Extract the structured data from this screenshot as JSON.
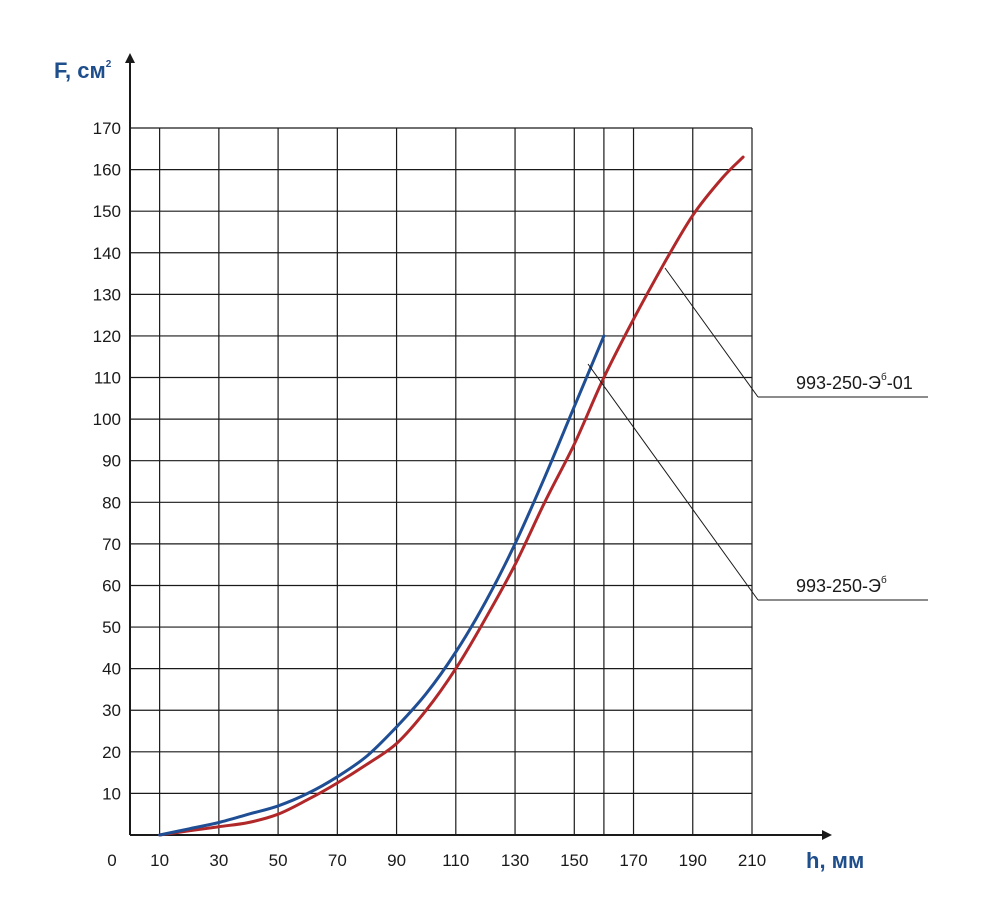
{
  "colors": {
    "blue": "#1f4e94",
    "red": "#b0282a",
    "grid": "#1a1a1a",
    "axis_title": "#1f4e8c"
  },
  "chart_data": {
    "type": "line",
    "xlabel": "h, мм",
    "ylabel_main": "F, см",
    "ylabel_sup": "2",
    "xlim": [
      0,
      210
    ],
    "ylim": [
      0,
      170
    ],
    "grid": true,
    "x_ticks": [
      {
        "label": "0",
        "value": 0
      },
      {
        "label": "10",
        "value": 10
      },
      {
        "label": "30",
        "value": 30
      },
      {
        "label": "50",
        "value": 50
      },
      {
        "label": "70",
        "value": 70
      },
      {
        "label": "90",
        "value": 90
      },
      {
        "label": "110",
        "value": 110
      },
      {
        "label": "130",
        "value": 130
      },
      {
        "label": "150",
        "value": 150
      },
      {
        "label": "170",
        "value": 170
      },
      {
        "label": "190",
        "value": 190
      },
      {
        "label": "210",
        "value": 210
      }
    ],
    "x_gridlines": [
      0,
      10,
      30,
      50,
      70,
      90,
      110,
      130,
      150,
      160,
      170,
      190,
      210
    ],
    "y_ticks": [
      10,
      20,
      30,
      40,
      50,
      60,
      70,
      80,
      90,
      100,
      110,
      120,
      130,
      140,
      150,
      160,
      170
    ],
    "series": [
      {
        "name_main": "993-250-Э",
        "name_sup": "б",
        "name_suffix": "",
        "color": "blue",
        "x": [
          10,
          20,
          30,
          40,
          50,
          60,
          70,
          80,
          90,
          100,
          110,
          120,
          130,
          140,
          150,
          160
        ],
        "y": [
          0,
          1.5,
          3,
          5,
          7,
          10,
          14,
          19,
          26,
          34,
          44,
          56,
          70,
          86,
          103,
          120
        ]
      },
      {
        "name_main": "993-250-Э",
        "name_sup": "б",
        "name_suffix": "-01",
        "color": "red",
        "x": [
          10,
          20,
          30,
          40,
          50,
          60,
          70,
          80,
          90,
          100,
          110,
          120,
          130,
          140,
          150,
          160,
          170,
          180,
          190,
          200,
          207
        ],
        "y": [
          0,
          1,
          2,
          3,
          5,
          8.5,
          12.5,
          17,
          22,
          30,
          40,
          52,
          65,
          80,
          94,
          110,
          124,
          137,
          149,
          158,
          163
        ]
      }
    ]
  }
}
